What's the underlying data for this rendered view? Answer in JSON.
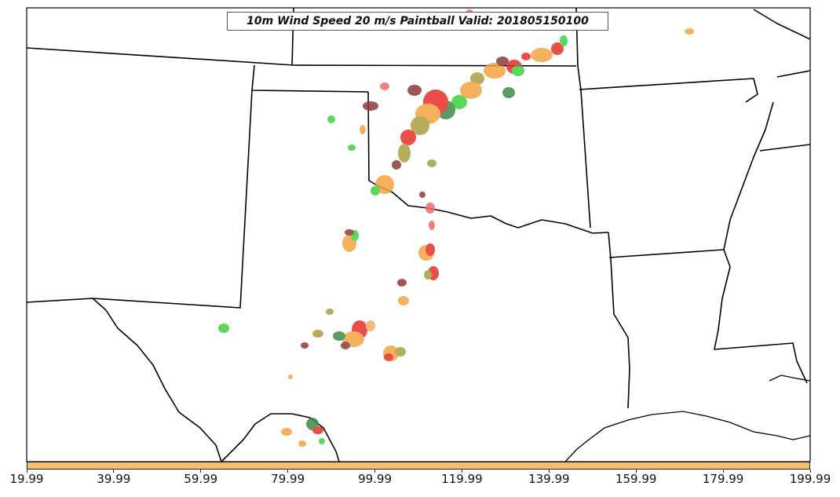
{
  "title": "10m Wind Speed 20 m/s Paintball Valid: 201805150100",
  "colorbar": {
    "color": "#f9bf6c",
    "ticks": [
      "19.99",
      "39.99",
      "59.99",
      "79.99",
      "99.99",
      "119.99",
      "139.99",
      "159.99",
      "179.99",
      "199.99"
    ]
  },
  "palette": {
    "orange": "#f5a442",
    "red": "#e8302a",
    "light_red": "#f26a6a",
    "green": "#3fd13f",
    "dark_green": "#3e8a4a",
    "olive": "#a8a040",
    "brown": "#8b3a3a",
    "light_orange": "#f7b060"
  }
}
